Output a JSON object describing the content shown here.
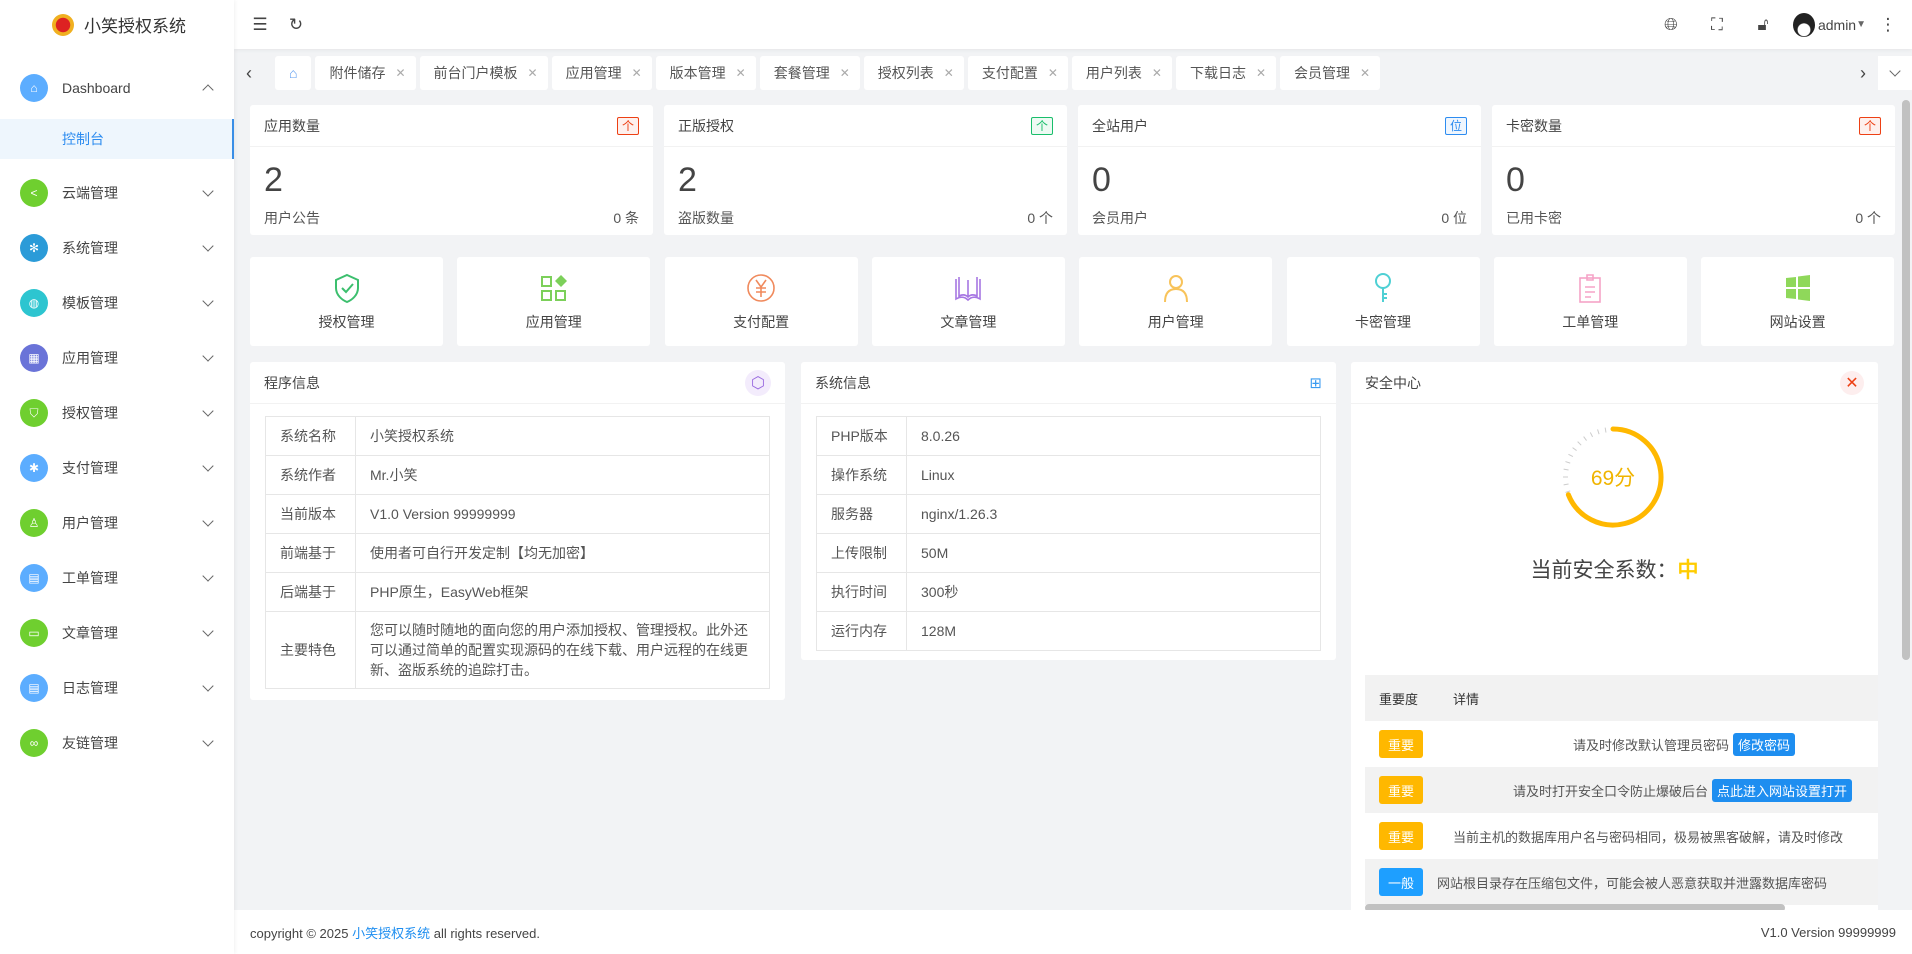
{
  "app": {
    "title": "小笑授权系统"
  },
  "sidebar": {
    "items": [
      {
        "label": "Dashboard",
        "color": "#5cadff",
        "icon": "home-icon",
        "expanded": true
      },
      {
        "label": "云端管理",
        "color": "#6fcf2f",
        "icon": "share-icon"
      },
      {
        "label": "系统管理",
        "color": "#2b9bd8",
        "icon": "gear-icon"
      },
      {
        "label": "模板管理",
        "color": "#2dc5d0",
        "icon": "palette-icon"
      },
      {
        "label": "应用管理",
        "color": "#6a73d8",
        "icon": "apps-icon"
      },
      {
        "label": "授权管理",
        "color": "#6fcf2f",
        "icon": "shield-icon"
      },
      {
        "label": "支付管理",
        "color": "#5cadff",
        "icon": "pay-icon"
      },
      {
        "label": "用户管理",
        "color": "#6fcf2f",
        "icon": "user-icon"
      },
      {
        "label": "工单管理",
        "color": "#5cadff",
        "icon": "clipboard-icon"
      },
      {
        "label": "文章管理",
        "color": "#6fcf2f",
        "icon": "book-icon"
      },
      {
        "label": "日志管理",
        "color": "#5cadff",
        "icon": "log-icon"
      },
      {
        "label": "友链管理",
        "color": "#6fcf2f",
        "icon": "link-icon"
      }
    ],
    "sub_active": "控制台"
  },
  "header": {
    "user": "admin"
  },
  "tabs": [
    "附件储存",
    "前台门户模板",
    "应用管理",
    "版本管理",
    "套餐管理",
    "授权列表",
    "支付配置",
    "用户列表",
    "下载日志",
    "会员管理"
  ],
  "stats": [
    {
      "title": "应用数量",
      "tag": "个",
      "tag_color": "#ed4014",
      "value": "2",
      "foot_label": "用户公告",
      "foot_value": "0 条"
    },
    {
      "title": "正版授权",
      "tag": "个",
      "tag_color": "#19be6b",
      "value": "2",
      "foot_label": "盗版数量",
      "foot_value": "0 个"
    },
    {
      "title": "全站用户",
      "tag": "位",
      "tag_color": "#2d8cf0",
      "value": "0",
      "foot_label": "会员用户",
      "foot_value": "0 位"
    },
    {
      "title": "卡密数量",
      "tag": "个",
      "tag_color": "#ed4014",
      "value": "0",
      "foot_label": "已用卡密",
      "foot_value": "0 个"
    }
  ],
  "quick": [
    {
      "label": "授权管理",
      "icon": "shield-check-icon",
      "color": "#3cbf6e"
    },
    {
      "label": "应用管理",
      "icon": "apps-icon",
      "color": "#7cd05a"
    },
    {
      "label": "支付配置",
      "icon": "yen-icon",
      "color": "#f08a5d"
    },
    {
      "label": "文章管理",
      "icon": "book-icon",
      "color": "#a777e3"
    },
    {
      "label": "用户管理",
      "icon": "user-icon",
      "color": "#f8c35a"
    },
    {
      "label": "卡密管理",
      "icon": "key-icon",
      "color": "#4fd0d4"
    },
    {
      "label": "工单管理",
      "icon": "clipboard-icon",
      "color": "#f5a3c7"
    },
    {
      "label": "网站设置",
      "icon": "windows-icon",
      "color": "#8fd85a"
    }
  ],
  "program": {
    "title": "程序信息",
    "rows": [
      [
        "系统名称",
        "小笑授权系统"
      ],
      [
        "系统作者",
        "Mr.小笑"
      ],
      [
        "当前版本",
        "V1.0 Version 99999999"
      ],
      [
        "前端基于",
        "使用者可自行开发定制【均无加密】"
      ],
      [
        "后端基于",
        "PHP原生，EasyWeb框架"
      ],
      [
        "主要特色",
        "您可以随时随地的面向您的用户添加授权、管理授权。此外还可以通过简单的配置实现源码的在线下载、用户远程的在线更新、盗版系统的追踪打击。"
      ]
    ]
  },
  "system": {
    "title": "系统信息",
    "rows": [
      [
        "PHP版本",
        "8.0.26"
      ],
      [
        "操作系统",
        "Linux"
      ],
      [
        "服务器",
        "nginx/1.26.3"
      ],
      [
        "上传限制",
        "50M"
      ],
      [
        "执行时间",
        "300秒"
      ],
      [
        "运行内存",
        "128M"
      ]
    ]
  },
  "security": {
    "title": "安全中心",
    "score": 69,
    "score_text": "69分",
    "level_label": "当前安全系数：",
    "level": "中",
    "columns": [
      "重要度",
      "详情"
    ],
    "rows": [
      {
        "level": "重要",
        "color": "#ffb800",
        "text": "请及时修改默认管理员密码",
        "action": "修改密码"
      },
      {
        "level": "重要",
        "color": "#ffb800",
        "text": "请及时打开安全口令防止爆破后台",
        "action": "点此进入网站设置打开"
      },
      {
        "level": "重要",
        "color": "#ffb800",
        "text": "当前主机的数据库用户名与密码相同，极易被黑客破解，请及时修改"
      },
      {
        "level": "一般",
        "color": "#1e9fff",
        "text": "网站根目录存在压缩包文件，可能会被人恶意获取并泄露数据库密码"
      }
    ]
  },
  "footer": {
    "prefix": "copyright © 2025 ",
    "link": "小笑授权系统",
    "suffix": " all rights reserved.",
    "version": "V1.0 Version 99999999"
  }
}
